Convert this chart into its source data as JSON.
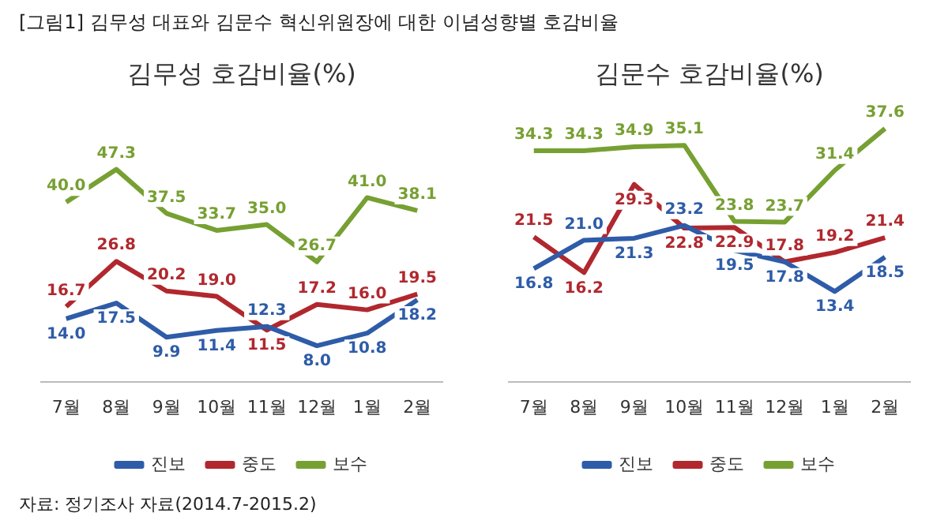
{
  "chart_data": [
    {
      "type": "line",
      "title": "김무성 호감비율(%)",
      "annotations": [
        "[그림1] 김무성 대표와 김문수 혁신위원장에 대한 이념성향별 호감비율",
        "자료: 정기조사 자료(2014.7-2015.2)"
      ],
      "categories": [
        "7월",
        "8월",
        "9월",
        "10월",
        "11월",
        "12월",
        "1월",
        "2월"
      ],
      "series": [
        {
          "name": "진보",
          "color": "#2e5ca8",
          "values": [
            14.0,
            17.5,
            9.9,
            11.4,
            12.3,
            8.0,
            10.8,
            18.2
          ],
          "value_labels": [
            "14.0",
            "17.5",
            "9.9",
            "11.4",
            "12.3",
            "8.0",
            "10.8",
            "18.2"
          ]
        },
        {
          "name": "중도",
          "color": "#b0282e",
          "values": [
            16.7,
            26.8,
            20.2,
            19.0,
            11.5,
            17.2,
            16.0,
            19.5
          ],
          "value_labels": [
            "16.7",
            "26.8",
            "20.2",
            "19.0",
            "11.5",
            "17.2",
            "16.0",
            "19.5"
          ]
        },
        {
          "name": "보수",
          "color": "#77a033",
          "values": [
            40.0,
            47.3,
            37.5,
            33.7,
            35.0,
            26.7,
            41.0,
            38.1
          ],
          "value_labels": [
            "40.0",
            "47.3",
            "37.5",
            "33.7",
            "35.0",
            "26.7",
            "41.0",
            "38.1"
          ]
        }
      ],
      "tick_labels": "x",
      "grid": false,
      "legend": "bottom",
      "marker": "none"
    },
    {
      "type": "line",
      "title": "김문수 호감비율(%)",
      "categories": [
        "7월",
        "8월",
        "9월",
        "10월",
        "11월",
        "12월",
        "1월",
        "2월"
      ],
      "series": [
        {
          "name": "진보",
          "color": "#2e5ca8",
          "values": [
            16.8,
            21.0,
            21.3,
            23.2,
            19.5,
            17.8,
            13.4,
            18.5
          ],
          "value_labels": [
            "16.8",
            "21.0",
            "21.3",
            "23.2",
            "19.5",
            "17.8",
            "13.4",
            "18.5"
          ]
        },
        {
          "name": "중도",
          "color": "#b0282e",
          "values": [
            21.5,
            16.2,
            29.3,
            22.8,
            22.9,
            17.8,
            19.2,
            21.4
          ],
          "value_labels": [
            "21.5",
            "16.2",
            "29.3",
            "22.8",
            "22.9",
            "17.8",
            "19.2",
            "21.4"
          ]
        },
        {
          "name": "보수",
          "color": "#77a033",
          "values": [
            34.3,
            34.3,
            34.9,
            35.1,
            23.8,
            23.7,
            31.4,
            37.6
          ],
          "value_labels": [
            "34.3",
            "34.3",
            "34.9",
            "35.1",
            "23.8",
            "23.7",
            "31.4",
            "37.6"
          ]
        }
      ],
      "tick_labels": "x",
      "grid": false,
      "legend": "bottom",
      "marker": "none"
    }
  ]
}
